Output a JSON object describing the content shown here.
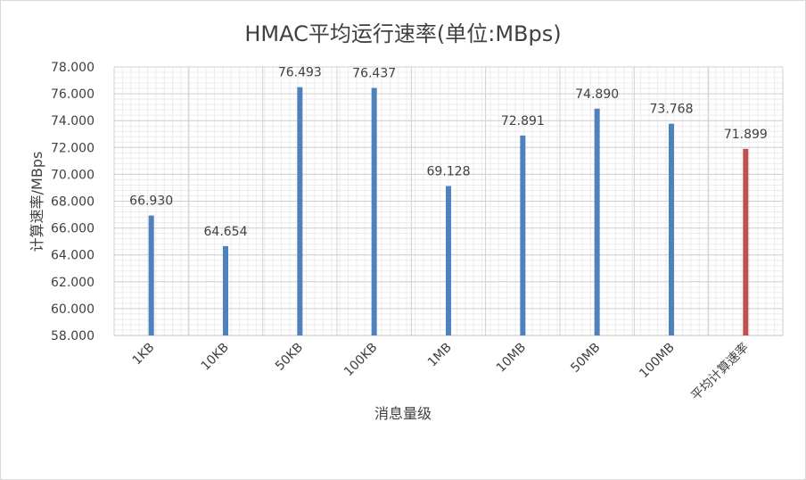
{
  "chart_data": {
    "type": "bar",
    "title": "HMAC平均运行速率(单位:MBps)",
    "xlabel": "消息量级",
    "ylabel": "计算速率/MBps",
    "ylim": [
      58,
      78
    ],
    "ytick_step": 2,
    "ytick_labels": [
      "58.000",
      "60.000",
      "62.000",
      "64.000",
      "66.000",
      "68.000",
      "70.000",
      "72.000",
      "74.000",
      "76.000",
      "78.000"
    ],
    "categories": [
      "1KB",
      "10KB",
      "50KB",
      "100KB",
      "1MB",
      "10MB",
      "50MB",
      "100MB",
      "平均计算速率"
    ],
    "values": [
      66.93,
      64.654,
      76.493,
      76.437,
      69.128,
      72.891,
      74.89,
      73.768,
      71.899
    ],
    "value_labels": [
      "66.930",
      "64.654",
      "76.493",
      "76.437",
      "69.128",
      "72.891",
      "74.890",
      "73.768",
      "71.899"
    ],
    "bar_colors": [
      "#4f81bd",
      "#4f81bd",
      "#4f81bd",
      "#4f81bd",
      "#4f81bd",
      "#4f81bd",
      "#4f81bd",
      "#4f81bd",
      "#c0504d"
    ],
    "grid": true,
    "legend": "none"
  }
}
